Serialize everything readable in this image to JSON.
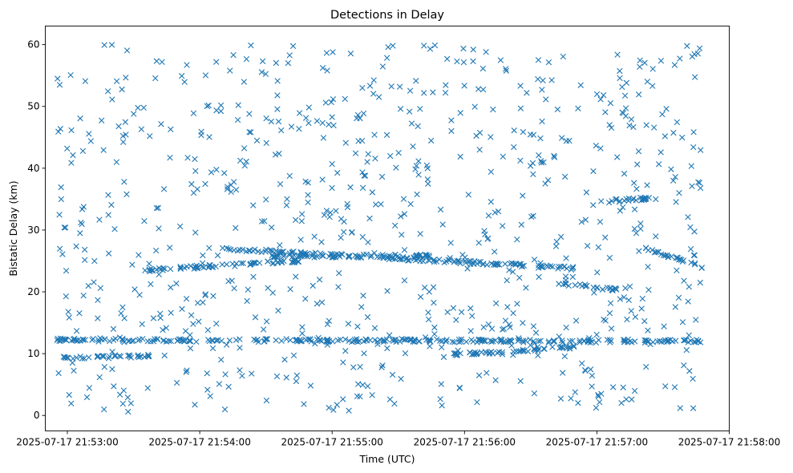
{
  "chart_data": {
    "type": "scatter",
    "title": "Detections in Delay",
    "xlabel": "Time (UTC)",
    "ylabel": "Bistatic Delay (km)",
    "x_axis_type": "time",
    "xlim": [
      "2025-07-17T21:52:50",
      "2025-07-17T21:58:00"
    ],
    "ylim": [
      -2.5,
      63
    ],
    "x_ticks": [
      {
        "t": "2025-07-17T21:53:00",
        "label": "2025-07-17 21:53:00"
      },
      {
        "t": "2025-07-17T21:54:00",
        "label": "2025-07-17 21:54:00"
      },
      {
        "t": "2025-07-17T21:55:00",
        "label": "2025-07-17 21:55:00"
      },
      {
        "t": "2025-07-17T21:56:00",
        "label": "2025-07-17 21:56:00"
      },
      {
        "t": "2025-07-17T21:57:00",
        "label": "2025-07-17 21:57:00"
      },
      {
        "t": "2025-07-17T21:58:00",
        "label": "2025-07-17 21:58:00"
      }
    ],
    "y_ticks": [
      0,
      10,
      20,
      30,
      40,
      50,
      60
    ],
    "grid": false,
    "legend": "none",
    "marker": "x",
    "color": "#1f77b4",
    "time_range": [
      "2025-07-17T21:52:55",
      "2025-07-17T21:57:48"
    ],
    "delay_range_km": [
      0.5,
      60
    ],
    "tracks": [
      {
        "start": "2025-07-17T21:52:55",
        "end": "2025-07-17T21:57:48",
        "delay_start_km": 12.2,
        "delay_end_km": 12.0
      },
      {
        "start": "2025-07-17T21:52:58",
        "end": "2025-07-17T21:53:40",
        "delay_start_km": 9.3,
        "delay_end_km": 9.7
      },
      {
        "start": "2025-07-17T21:53:35",
        "end": "2025-07-17T21:54:45",
        "delay_start_km": 23.5,
        "delay_end_km": 25.0
      },
      {
        "start": "2025-07-17T21:54:10",
        "end": "2025-07-17T21:56:50",
        "delay_start_km": 27.0,
        "delay_end_km": 23.8
      },
      {
        "start": "2025-07-17T21:54:30",
        "end": "2025-07-17T21:55:45",
        "delay_start_km": 25.8,
        "delay_end_km": 25.8
      },
      {
        "start": "2025-07-17T21:55:55",
        "end": "2025-07-17T21:56:55",
        "delay_start_km": 9.8,
        "delay_end_km": 11.2
      },
      {
        "start": "2025-07-17T21:56:40",
        "end": "2025-07-17T21:57:10",
        "delay_start_km": 21.5,
        "delay_end_km": 20.3
      },
      {
        "start": "2025-07-17T21:57:00",
        "end": "2025-07-17T21:57:25",
        "delay_start_km": 34.5,
        "delay_end_km": 35.2
      },
      {
        "start": "2025-07-17T21:57:20",
        "end": "2025-07-17T21:57:48",
        "delay_start_km": 27.3,
        "delay_end_km": 24.0
      }
    ]
  }
}
